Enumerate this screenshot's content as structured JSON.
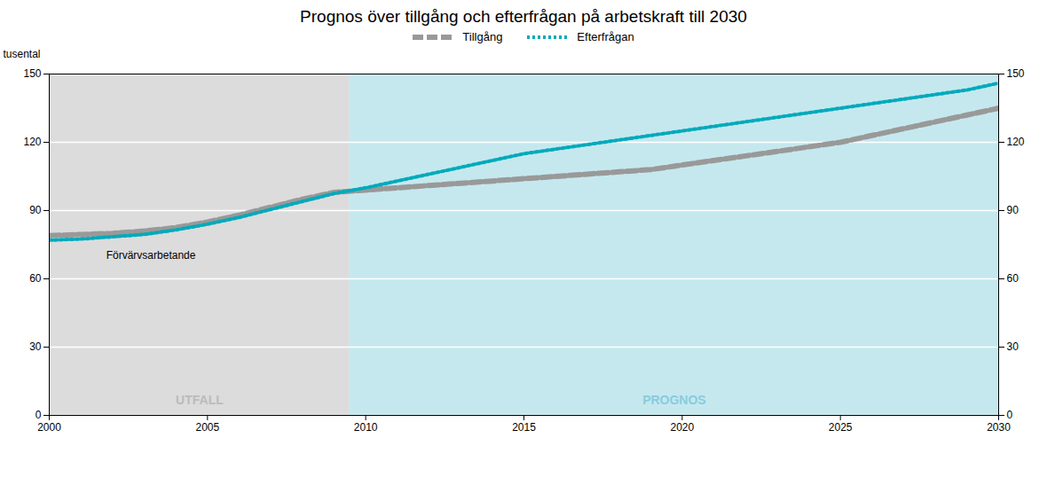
{
  "chart_data": {
    "type": "line",
    "title": "Prognos över tillgång och efterfrågan på arbetskraft till 2030",
    "ylabel": "tusental",
    "x": [
      2000,
      2001,
      2002,
      2003,
      2004,
      2005,
      2006,
      2007,
      2008,
      2009,
      2010,
      2011,
      2012,
      2013,
      2014,
      2015,
      2016,
      2017,
      2018,
      2019,
      2020,
      2021,
      2022,
      2023,
      2024,
      2025,
      2026,
      2027,
      2028,
      2029,
      2030
    ],
    "series": [
      {
        "name": "Tillgång",
        "color": "#999999",
        "line_style": "dashed",
        "values": [
          79,
          79.5,
          80,
          81,
          82.5,
          85,
          88,
          91.5,
          95,
          98,
          99,
          100,
          101,
          102,
          103,
          104,
          105,
          106,
          107,
          108,
          110,
          112,
          114,
          116,
          118,
          120,
          123,
          126,
          129,
          132,
          135
        ]
      },
      {
        "name": "Efterfrågan",
        "color": "#00aabb",
        "line_style": "dotted",
        "values": [
          77,
          77.5,
          78.5,
          79.5,
          81.5,
          84,
          87,
          90.5,
          94,
          97.5,
          100,
          103,
          106,
          109,
          112,
          115,
          117,
          119,
          121,
          123,
          125,
          127,
          129,
          131,
          133,
          135,
          137,
          139,
          141,
          143,
          146
        ]
      }
    ],
    "xlim": [
      2000,
      2030
    ],
    "xticks": [
      2000,
      2005,
      2010,
      2015,
      2020,
      2025,
      2030
    ],
    "ylim": [
      0,
      150
    ],
    "yticks": [
      0,
      30,
      60,
      90,
      120,
      150
    ],
    "y2lim": [
      0,
      150
    ],
    "y2ticks": [
      0,
      30,
      60,
      90,
      120,
      150
    ],
    "grid": true,
    "regions": [
      {
        "label": "UTFALL",
        "x": [
          2000,
          2009.5
        ],
        "color": "#dcdcdc",
        "text_color": "#bbbbbb"
      },
      {
        "label": "PROGNOS",
        "x": [
          2009.5,
          2030
        ],
        "color": "#c5e8ef",
        "text_color": "#88ccdd"
      }
    ],
    "annotations": [
      {
        "text": "Förvärvsarbetande"
      }
    ]
  }
}
